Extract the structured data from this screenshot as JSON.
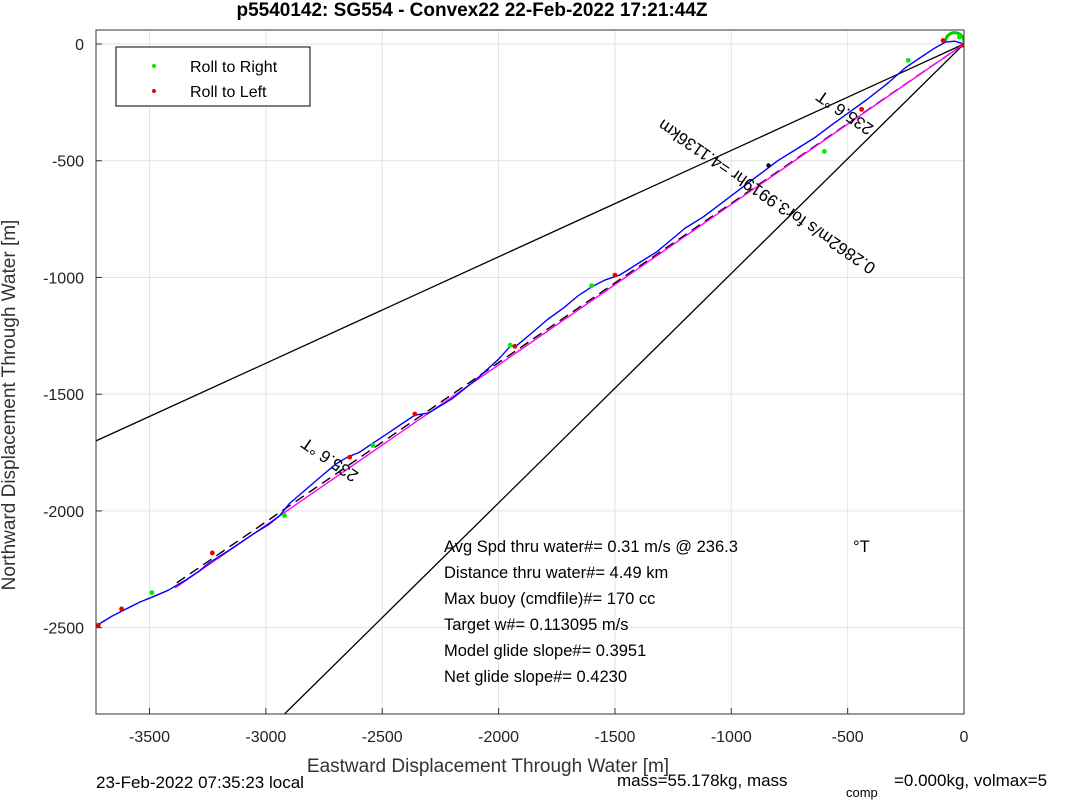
{
  "chart_data": {
    "type": "line",
    "title": "p5540142: SG554 - Convex22 22-Feb-2022 17:21:44Z",
    "xlabel": "Eastward Displacement Through Water [m]",
    "ylabel": "Northward Displacement Through Water [m]",
    "xlim": [
      -3730,
      0
    ],
    "ylim": [
      -2870,
      60
    ],
    "xticks": [
      -3500,
      -3000,
      -2500,
      -2000,
      -1500,
      -1000,
      -500,
      0
    ],
    "yticks": [
      0,
      -500,
      -1000,
      -1500,
      -2000,
      -2500
    ],
    "xtick_labels": [
      "-3500",
      "-3000",
      "-2500",
      "-2000",
      "-1500",
      "-1000",
      "-500",
      "0"
    ],
    "ytick_labels": [
      "0",
      "-500",
      "-1000",
      "-1500",
      "-2000",
      "-2500"
    ],
    "grid": true,
    "legend": {
      "placement": "top-left",
      "entries": [
        {
          "label": "Roll to Right",
          "color": "#00ee00"
        },
        {
          "label": "Roll to Left",
          "color": "#ee0000"
        }
      ]
    },
    "series": [
      {
        "style": "track",
        "color": "#0000ff",
        "x": [
          0,
          -40,
          -80,
          -130,
          -190,
          -250,
          -330,
          -420,
          -490,
          -560,
          -640,
          -720,
          -800,
          -880,
          -960,
          -1040,
          -1120,
          -1200,
          -1260,
          -1320,
          -1400,
          -1480,
          -1540,
          -1600,
          -1660,
          -1720,
          -1790,
          -1860,
          -1920,
          -1950,
          -2000,
          -2100,
          -2200,
          -2300,
          -2360,
          -2420,
          -2480,
          -2540,
          -2600,
          -2650,
          -2700,
          -2760,
          -2830,
          -2900,
          -2940,
          -2990,
          -3040,
          -3100,
          -3160,
          -3240,
          -3290,
          -3350,
          -3420,
          -3490,
          -3540,
          -3600,
          -3660,
          -3710,
          -3730
        ],
        "y": [
          0,
          12,
          8,
          -20,
          -60,
          -100,
          -170,
          -240,
          -290,
          -340,
          -400,
          -450,
          -500,
          -560,
          -620,
          -680,
          -740,
          -790,
          -840,
          -890,
          -940,
          -990,
          -1010,
          -1040,
          -1080,
          -1130,
          -1180,
          -1240,
          -1290,
          -1295,
          -1350,
          -1440,
          -1520,
          -1580,
          -1590,
          -1630,
          -1670,
          -1710,
          -1750,
          -1770,
          -1800,
          -1850,
          -1910,
          -1970,
          -2020,
          -2060,
          -2090,
          -2130,
          -2170,
          -2220,
          -2260,
          -2300,
          -2340,
          -2370,
          -2390,
          -2420,
          -2450,
          -2480,
          -2495
        ]
      },
      {
        "style": "heading",
        "color": "#ff00ff",
        "x": [
          0,
          -3390
        ],
        "y": [
          0,
          -2330
        ]
      },
      {
        "style": "dashed",
        "color": "#000000",
        "x": [
          0,
          -3400
        ],
        "y": [
          0,
          -2320
        ]
      },
      {
        "style": "boundary",
        "color": "#000000",
        "x": [
          0,
          -3730
        ],
        "y": [
          0,
          -1700
        ]
      },
      {
        "style": "boundary",
        "color": "#000000",
        "x": [
          0,
          -2920
        ],
        "y": [
          0,
          -2870
        ]
      }
    ],
    "roll_right_points": {
      "x": [
        -20,
        -240,
        -600,
        -1600,
        -1950,
        -2540,
        -2920,
        -3490
      ],
      "y": [
        30,
        -70,
        -460,
        -1035,
        -1290,
        -1720,
        -2020,
        -2350
      ]
    },
    "roll_left_points": {
      "x": [
        -5,
        -90,
        -440,
        -1500,
        -1930,
        -2360,
        -2640,
        -3230,
        -3620,
        -3720
      ],
      "y": [
        -5,
        15,
        -280,
        -990,
        -1295,
        -1585,
        -1770,
        -2180,
        -2420,
        -2490
      ]
    },
    "waypoint": {
      "x": -840,
      "y": -520
    },
    "annotations": {
      "heading_label": "235.6 °T",
      "heading_label_far": "235.6 °T",
      "speed_label": "0.2862m/s for3.9919hr =4.1136km",
      "stats": [
        "Avg Spd thru water#=  0.31 m/s @ 236.3",
        "Distance thru water#=  4.49 km",
        "Max buoy (cmdfile)#= 170 cc",
        "Target w#= 0.113095 m/s",
        "Model glide slope#= 0.3951",
        "Net glide slope#= 0.4230"
      ],
      "stats_unit": "°T"
    },
    "footer": {
      "local_time": "23-Feb-2022 07:35:23 local",
      "mass_text": "mass=55.178kg, mass",
      "mass_sub": "comp",
      "mass_rest": "=0.000kg, volmax=5"
    }
  }
}
